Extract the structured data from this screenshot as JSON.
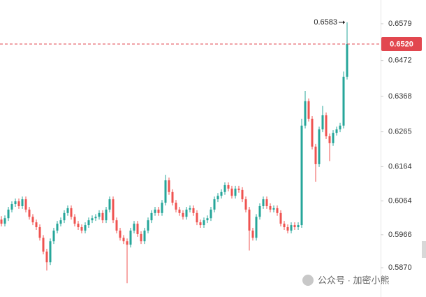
{
  "chart_data": {
    "type": "candlestick",
    "up_color": "#26a69a",
    "down_color": "#ef5350",
    "ylim": [
      0.5785,
      0.6648
    ],
    "yticks": [
      {
        "value": 0.587,
        "label": "0.5870"
      },
      0.5966,
      0.6064,
      0.6164,
      0.6265,
      0.6368,
      0.6472,
      0.6579
    ],
    "grid": false,
    "last_price": {
      "value": 0.652,
      "label": "0.6520",
      "color": "#e2474f"
    },
    "watermark": "公众号 · 加密小熊",
    "open": [
      0.601,
      0.5998,
      0.6014,
      0.6039,
      0.6055,
      0.6063,
      0.6049,
      0.6069,
      0.6039,
      0.6018,
      0.6002,
      0.5988,
      0.5957,
      0.5917,
      0.5886,
      0.5947,
      0.5978,
      0.5998,
      0.6008,
      0.6029,
      0.6043,
      0.6018,
      0.5998,
      0.5988,
      0.5978,
      0.5994,
      0.6008,
      0.6014,
      0.6018,
      0.6029,
      0.6008,
      0.6039,
      0.6069,
      0.6008,
      0.5978,
      0.5957,
      0.5947,
      0.5937,
      0.5978,
      0.5998,
      0.5968,
      0.5947,
      0.5978,
      0.6008,
      0.6029,
      0.6039,
      0.6029,
      0.6059,
      0.6124,
      0.609,
      0.6059,
      0.6039,
      0.6029,
      0.6018,
      0.6039,
      0.6043,
      0.6029,
      0.6002,
      0.5994,
      0.6008,
      0.6014,
      0.6039,
      0.6069,
      0.6079,
      0.609,
      0.611,
      0.61,
      0.6079,
      0.61,
      0.6096,
      0.6069,
      0.6039,
      0.5978,
      0.5957,
      0.6018,
      0.6049,
      0.6069,
      0.6049,
      0.6039,
      0.6043,
      0.6029,
      0.5998,
      0.5988,
      0.5978,
      0.5994,
      0.5988,
      0.5994,
      0.6283,
      0.6354,
      0.6303,
      0.6222,
      0.6171,
      0.6272,
      0.6313,
      0.6252,
      0.6232,
      0.6262,
      0.6272,
      0.6283,
      0.6425
    ],
    "high": [
      0.602,
      0.6022,
      0.6047,
      0.6063,
      0.6071,
      0.6071,
      0.6077,
      0.6077,
      0.6047,
      0.6026,
      0.601,
      0.5996,
      0.5965,
      0.5925,
      0.5955,
      0.5986,
      0.6006,
      0.6016,
      0.6037,
      0.6051,
      0.6051,
      0.6026,
      0.6006,
      0.5996,
      0.6002,
      0.6016,
      0.6022,
      0.6026,
      0.6037,
      0.6037,
      0.6047,
      0.6077,
      0.6077,
      0.6016,
      0.5986,
      0.5965,
      0.5955,
      0.5986,
      0.6006,
      0.6006,
      0.5976,
      0.5986,
      0.6016,
      0.6037,
      0.6047,
      0.6047,
      0.6067,
      0.614,
      0.6132,
      0.6098,
      0.6067,
      0.6047,
      0.6037,
      0.6047,
      0.6051,
      0.6051,
      0.6037,
      0.601,
      0.6016,
      0.6022,
      0.6047,
      0.6077,
      0.6087,
      0.6098,
      0.6118,
      0.6118,
      0.6108,
      0.6108,
      0.6108,
      0.6104,
      0.6077,
      0.6047,
      0.5986,
      0.6026,
      0.6057,
      0.6077,
      0.6077,
      0.6057,
      0.6051,
      0.6051,
      0.6037,
      0.6006,
      0.5996,
      0.6002,
      0.6002,
      0.6002,
      0.6303,
      0.6384,
      0.6362,
      0.6311,
      0.623,
      0.628,
      0.634,
      0.6321,
      0.626,
      0.627,
      0.628,
      0.6291,
      0.644,
      0.6583
    ],
    "low": [
      0.599,
      0.599,
      0.6006,
      0.6031,
      0.6047,
      0.6041,
      0.6041,
      0.6031,
      0.601,
      0.5994,
      0.598,
      0.5949,
      0.5909,
      0.5862,
      0.5878,
      0.5939,
      0.597,
      0.599,
      0.6,
      0.6021,
      0.601,
      0.599,
      0.598,
      0.597,
      0.597,
      0.5986,
      0.6,
      0.6006,
      0.601,
      0.6,
      0.6,
      0.6031,
      0.6,
      0.597,
      0.5949,
      0.5939,
      0.5825,
      0.5929,
      0.597,
      0.596,
      0.5939,
      0.5939,
      0.597,
      0.6,
      0.6021,
      0.6021,
      0.6021,
      0.6051,
      0.6082,
      0.6051,
      0.6031,
      0.6021,
      0.601,
      0.601,
      0.6031,
      0.6021,
      0.5994,
      0.5986,
      0.5986,
      0.6,
      0.6006,
      0.6031,
      0.6061,
      0.6071,
      0.6082,
      0.6092,
      0.6071,
      0.6071,
      0.6088,
      0.6061,
      0.6031,
      0.592,
      0.5949,
      0.5949,
      0.601,
      0.6041,
      0.6041,
      0.6031,
      0.6031,
      0.6021,
      0.599,
      0.598,
      0.597,
      0.597,
      0.598,
      0.598,
      0.5986,
      0.6275,
      0.6295,
      0.6214,
      0.612,
      0.6163,
      0.6264,
      0.6244,
      0.618,
      0.6224,
      0.6254,
      0.6264,
      0.6275,
      0.6417
    ],
    "close": [
      0.5998,
      0.6014,
      0.6039,
      0.6055,
      0.6063,
      0.6049,
      0.6069,
      0.6039,
      0.6018,
      0.6002,
      0.5988,
      0.5957,
      0.5917,
      0.5886,
      0.5947,
      0.5978,
      0.5998,
      0.6008,
      0.6029,
      0.6043,
      0.6018,
      0.5998,
      0.5988,
      0.5978,
      0.5994,
      0.6008,
      0.6014,
      0.6018,
      0.6029,
      0.6008,
      0.6039,
      0.6069,
      0.6008,
      0.5978,
      0.5957,
      0.5947,
      0.5937,
      0.5978,
      0.5998,
      0.5968,
      0.5947,
      0.5978,
      0.6008,
      0.6029,
      0.6039,
      0.6029,
      0.6059,
      0.6124,
      0.609,
      0.6059,
      0.6039,
      0.6029,
      0.6018,
      0.6039,
      0.6043,
      0.6029,
      0.6002,
      0.5994,
      0.6008,
      0.6014,
      0.6039,
      0.6069,
      0.6079,
      0.609,
      0.611,
      0.61,
      0.6079,
      0.61,
      0.6096,
      0.6069,
      0.6039,
      0.5978,
      0.5957,
      0.6018,
      0.6049,
      0.6069,
      0.6049,
      0.6039,
      0.6043,
      0.6029,
      0.5998,
      0.5988,
      0.5978,
      0.5994,
      0.5988,
      0.5994,
      0.6283,
      0.6354,
      0.6303,
      0.6222,
      0.6171,
      0.6272,
      0.6313,
      0.6252,
      0.6232,
      0.6262,
      0.6272,
      0.6283,
      0.6425,
      0.652
    ]
  }
}
